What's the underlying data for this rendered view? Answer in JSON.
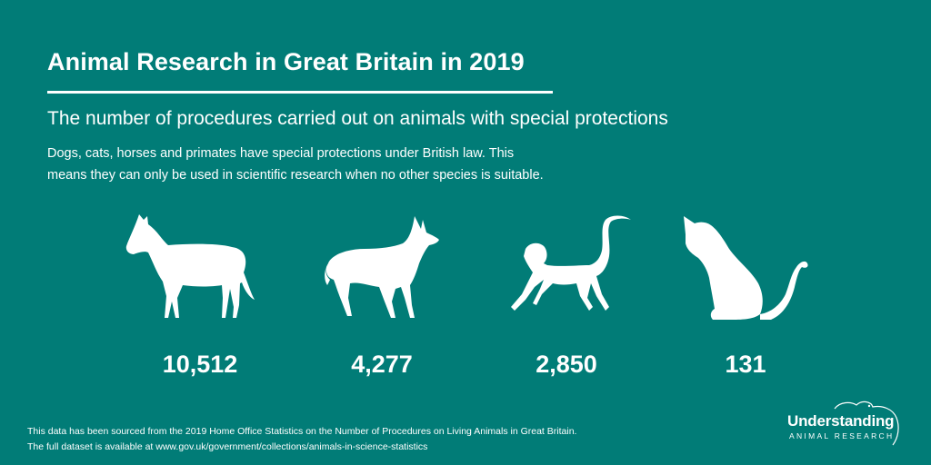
{
  "title": "Animal Research in Great Britain in 2019",
  "subtitle": "The number of procedures carried out on animals with special protections",
  "description_line1": "Dogs, cats, horses and primates have special protections under British law. This",
  "description_line2": "means they can only be used in scientific research when no other species is suitable.",
  "animals": [
    {
      "icon": "horse-icon",
      "count": "10,512"
    },
    {
      "icon": "dog-icon",
      "count": "4,277"
    },
    {
      "icon": "monkey-icon",
      "count": "2,850"
    },
    {
      "icon": "cat-icon",
      "count": "131"
    }
  ],
  "footer": {
    "line1": "This data has been sourced from the 2019 Home Office Statistics on the Number of Procedures on Living Animals in Great Britain.",
    "line2": "The full dataset is available at www.gov.uk/government/collections/animals-in-science-statistics"
  },
  "logo": {
    "word1": "Understanding",
    "word2": "ANIMAL RESEARCH"
  },
  "colors": {
    "background": "#017c77",
    "foreground": "#ffffff"
  }
}
